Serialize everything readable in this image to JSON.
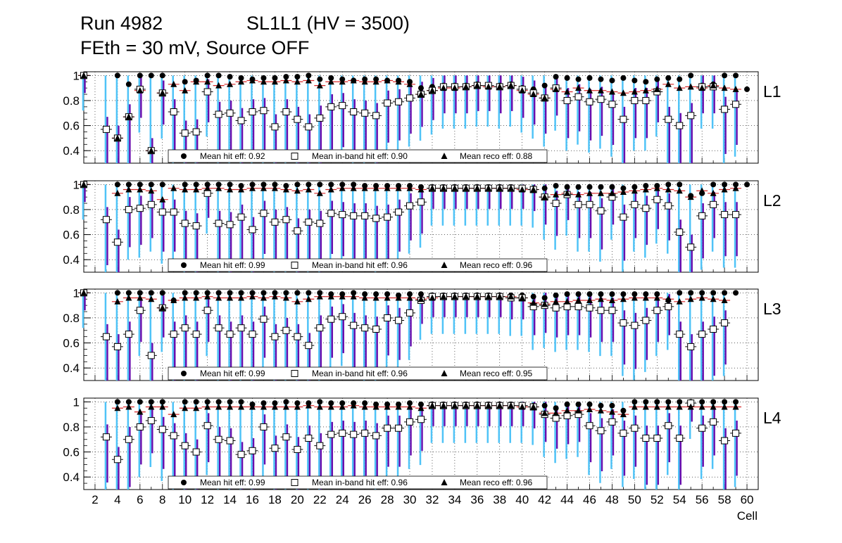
{
  "title": {
    "run": "Run 4982",
    "chamber": "SL1L1 (HV = 3500)",
    "conditions": "FEth = 30 mV, Source OFF"
  },
  "chart_data": {
    "type": "scatter",
    "xlabel": "Cell",
    "x_ticks": [
      "2",
      "4",
      "6",
      "8",
      "10",
      "12",
      "14",
      "16",
      "18",
      "20",
      "22",
      "24",
      "26",
      "28",
      "30",
      "32",
      "34",
      "36",
      "38",
      "40",
      "42",
      "44",
      "46",
      "48",
      "50",
      "52",
      "54",
      "56",
      "58",
      "60"
    ],
    "xlim": [
      1,
      61
    ],
    "ylim": [
      0.3,
      1.03
    ],
    "y_ticks": [
      "0.4",
      "0.6",
      "0.8",
      "1"
    ],
    "grid": true,
    "legend_labels": {
      "hit": "Mean hit  eff:",
      "inband": "Mean in-band hit eff:",
      "reco": "Mean reco eff:"
    },
    "colors": {
      "hit_marker": "#000000",
      "inband_marker": "#ffffff",
      "inband_error": "#4fc3f7",
      "reco_error": "#6a0dad",
      "reco_line": "#d62728"
    },
    "panels": [
      {
        "label": "L1",
        "mean_hit": "0.92",
        "mean_inband": "0.90",
        "mean_reco": "0.88",
        "series": [
          {
            "name": "hit",
            "values": [
              1.0,
              null,
              null,
              1.0,
              0.93,
              1.0,
              1.0,
              1.0,
              null,
              0.95,
              0.96,
              1.0,
              1.0,
              0.99,
              0.98,
              0.97,
              0.98,
              0.98,
              0.99,
              0.99,
              1.0,
              0.97,
              0.98,
              0.97,
              0.96,
              0.97,
              0.97,
              0.96,
              0.96,
              0.95,
              0.9,
              0.91,
              0.92,
              0.92,
              0.92,
              0.93,
              0.92,
              0.92,
              0.93,
              0.9,
              0.89,
              0.92,
              0.99,
              0.98,
              0.97,
              0.98,
              0.97,
              0.96,
              0.98,
              0.96,
              0.95,
              0.97,
              0.98,
              0.97,
              1.0,
              0.92,
              0.93,
              1.0,
              1.0,
              0.89
            ]
          },
          {
            "name": "inband",
            "values": [
              1.0,
              null,
              0.57,
              0.5,
              0.67,
              0.89,
              0.4,
              0.86,
              0.71,
              0.54,
              0.55,
              0.87,
              0.69,
              0.7,
              0.64,
              0.71,
              0.72,
              0.59,
              0.71,
              0.65,
              0.59,
              0.66,
              0.75,
              0.76,
              0.71,
              0.7,
              0.68,
              0.78,
              0.79,
              0.82,
              0.85,
              0.88,
              0.91,
              0.91,
              0.91,
              0.92,
              0.92,
              0.91,
              0.92,
              0.89,
              0.86,
              0.82,
              0.9,
              0.8,
              0.83,
              0.79,
              0.81,
              0.77,
              0.65,
              0.8,
              0.8,
              0.87,
              0.65,
              0.6,
              0.68,
              0.91,
              0.91,
              0.73,
              0.77,
              null
            ]
          },
          {
            "name": "reco",
            "values": [
              1.0,
              null,
              null,
              0.5,
              0.67,
              0.88,
              0.4,
              0.86,
              0.93,
              0.88,
              0.95,
              0.95,
              0.92,
              0.93,
              0.95,
              0.96,
              0.95,
              0.95,
              0.96,
              0.95,
              0.96,
              0.92,
              0.95,
              0.95,
              0.96,
              0.95,
              0.95,
              0.96,
              0.95,
              0.93,
              0.85,
              0.88,
              0.9,
              0.9,
              0.91,
              0.92,
              0.91,
              0.91,
              0.92,
              0.88,
              0.85,
              0.82,
              0.89,
              0.87,
              0.9,
              0.88,
              0.88,
              0.87,
              0.86,
              0.87,
              0.88,
              0.89,
              0.93,
              0.9,
              0.91,
              0.9,
              0.92,
              0.9,
              0.89,
              null
            ]
          }
        ]
      },
      {
        "label": "L2",
        "mean_hit": "0.99",
        "mean_inband": "0.96",
        "mean_reco": "0.96",
        "series": [
          {
            "name": "hit",
            "values": [
              1.0,
              null,
              null,
              1.0,
              1.0,
              1.0,
              1.0,
              1.0,
              null,
              1.0,
              1.0,
              1.0,
              1.0,
              1.0,
              0.99,
              1.0,
              1.0,
              1.0,
              0.99,
              1.0,
              1.0,
              1.0,
              1.0,
              1.0,
              1.0,
              0.99,
              0.99,
              0.99,
              0.99,
              0.99,
              0.98,
              0.98,
              0.98,
              0.98,
              0.98,
              0.98,
              0.98,
              0.98,
              0.98,
              0.97,
              0.97,
              0.97,
              0.99,
              0.98,
              0.98,
              0.98,
              0.98,
              0.98,
              0.97,
              0.98,
              0.99,
              0.99,
              1.0,
              1.0,
              0.91,
              0.93,
              1.0,
              1.0,
              1.0,
              1.0
            ]
          },
          {
            "name": "inband",
            "values": [
              1.0,
              null,
              0.72,
              0.54,
              0.8,
              0.81,
              0.84,
              0.78,
              0.78,
              0.69,
              0.67,
              0.93,
              0.69,
              0.68,
              0.74,
              0.64,
              0.77,
              0.7,
              0.72,
              0.63,
              0.7,
              0.69,
              0.77,
              0.76,
              0.75,
              0.75,
              0.73,
              0.74,
              0.78,
              0.83,
              0.86,
              0.97,
              0.97,
              0.97,
              0.97,
              0.97,
              0.97,
              0.97,
              0.97,
              0.97,
              0.96,
              0.9,
              0.85,
              0.92,
              0.84,
              0.84,
              0.79,
              0.9,
              0.74,
              0.84,
              0.81,
              0.88,
              0.83,
              0.62,
              0.5,
              0.75,
              0.84,
              0.76,
              0.76,
              null
            ]
          },
          {
            "name": "reco",
            "values": [
              1.0,
              null,
              null,
              0.93,
              0.96,
              0.96,
              0.95,
              0.88,
              0.97,
              0.96,
              0.96,
              0.97,
              0.97,
              0.96,
              0.96,
              0.97,
              0.97,
              0.97,
              0.96,
              0.95,
              0.96,
              0.93,
              0.96,
              0.97,
              0.97,
              0.97,
              0.97,
              0.97,
              0.97,
              0.97,
              0.96,
              0.97,
              0.97,
              0.97,
              0.97,
              0.97,
              0.97,
              0.97,
              0.97,
              0.96,
              0.96,
              0.9,
              0.92,
              0.93,
              0.92,
              0.93,
              0.93,
              0.93,
              0.94,
              0.95,
              0.96,
              0.97,
              0.96,
              0.95,
              0.9,
              0.95,
              0.93,
              0.96,
              0.97,
              null
            ]
          }
        ]
      },
      {
        "label": "L3",
        "mean_hit": "0.99",
        "mean_inband": "0.96",
        "mean_reco": "0.95",
        "series": [
          {
            "name": "hit",
            "values": [
              1.0,
              null,
              null,
              1.0,
              1.0,
              1.0,
              1.0,
              1.0,
              0.94,
              1.0,
              1.0,
              1.0,
              1.0,
              1.0,
              1.0,
              1.0,
              1.0,
              1.0,
              1.0,
              1.0,
              1.0,
              1.0,
              0.99,
              0.99,
              1.0,
              0.99,
              0.99,
              0.99,
              0.98,
              0.99,
              0.99,
              0.98,
              0.98,
              0.98,
              0.98,
              0.98,
              0.98,
              0.98,
              0.98,
              0.98,
              0.97,
              0.96,
              0.98,
              0.99,
              0.99,
              0.99,
              0.99,
              0.99,
              0.99,
              0.99,
              0.99,
              0.99,
              0.94,
              1.0,
              1.0,
              1.0,
              1.0,
              1.0,
              1.0,
              null
            ]
          },
          {
            "name": "inband",
            "values": [
              1.0,
              null,
              0.65,
              0.57,
              0.67,
              0.86,
              0.5,
              0.88,
              0.67,
              0.72,
              0.67,
              0.86,
              0.72,
              0.67,
              0.72,
              0.67,
              0.79,
              0.65,
              0.7,
              0.65,
              0.58,
              0.72,
              0.79,
              0.81,
              0.74,
              0.72,
              0.71,
              0.8,
              0.78,
              0.84,
              0.94,
              0.97,
              0.97,
              0.97,
              0.97,
              0.97,
              0.97,
              0.97,
              0.96,
              0.96,
              0.89,
              0.9,
              0.88,
              0.89,
              0.89,
              0.88,
              0.86,
              0.86,
              0.76,
              0.74,
              0.78,
              0.86,
              0.89,
              0.67,
              0.57,
              0.67,
              0.71,
              0.76,
              null,
              null
            ]
          },
          {
            "name": "reco",
            "values": [
              1.0,
              null,
              null,
              0.93,
              0.96,
              0.96,
              0.95,
              0.88,
              0.94,
              0.96,
              0.96,
              0.97,
              0.96,
              0.96,
              0.96,
              0.97,
              0.96,
              0.97,
              0.96,
              0.93,
              0.95,
              0.97,
              0.97,
              0.97,
              0.97,
              0.96,
              0.96,
              0.96,
              0.96,
              0.96,
              0.95,
              0.96,
              0.97,
              0.97,
              0.97,
              0.97,
              0.97,
              0.97,
              0.97,
              0.96,
              0.92,
              0.91,
              0.93,
              0.93,
              0.94,
              0.94,
              0.95,
              0.94,
              0.95,
              0.96,
              0.96,
              0.96,
              0.95,
              0.93,
              0.95,
              0.96,
              0.95,
              0.94,
              null,
              null
            ]
          }
        ]
      },
      {
        "label": "L4",
        "mean_hit": "0.99",
        "mean_inband": "0.96",
        "mean_reco": "0.96",
        "series": [
          {
            "name": "hit",
            "values": [
              null,
              null,
              null,
              1.0,
              1.0,
              1.0,
              1.0,
              1.0,
              null,
              1.0,
              1.0,
              1.0,
              1.0,
              1.0,
              1.0,
              0.98,
              0.99,
              0.99,
              1.0,
              0.99,
              0.99,
              1.0,
              0.99,
              0.99,
              0.99,
              0.99,
              0.98,
              0.98,
              0.98,
              0.99,
              0.98,
              0.98,
              0.98,
              0.98,
              0.98,
              0.98,
              0.98,
              0.98,
              0.98,
              0.97,
              0.97,
              0.97,
              0.95,
              0.98,
              0.98,
              0.98,
              0.97,
              0.97,
              0.93,
              1.0,
              1.0,
              1.0,
              1.0,
              1.0,
              1.0,
              1.0,
              1.0,
              1.0,
              1.0,
              null
            ]
          },
          {
            "name": "inband",
            "values": [
              null,
              null,
              0.72,
              0.54,
              0.7,
              0.8,
              0.85,
              0.78,
              0.73,
              0.65,
              0.6,
              0.81,
              0.7,
              0.69,
              0.58,
              0.61,
              0.8,
              0.63,
              0.72,
              0.62,
              0.71,
              0.65,
              0.74,
              0.75,
              0.74,
              0.75,
              0.73,
              0.79,
              0.79,
              0.84,
              0.86,
              0.97,
              0.97,
              0.97,
              0.97,
              0.97,
              0.97,
              0.97,
              0.97,
              0.97,
              0.96,
              0.9,
              0.87,
              0.89,
              0.9,
              0.81,
              0.77,
              0.84,
              0.75,
              0.79,
              0.71,
              0.71,
              0.81,
              0.71,
              0.99,
              0.79,
              0.84,
              0.69,
              0.75,
              null
            ]
          },
          {
            "name": "reco",
            "values": [
              null,
              null,
              null,
              0.95,
              0.96,
              0.92,
              0.96,
              0.96,
              0.9,
              0.95,
              0.95,
              0.96,
              0.96,
              0.96,
              0.96,
              0.96,
              0.96,
              0.96,
              0.96,
              0.96,
              0.97,
              0.96,
              0.96,
              0.96,
              0.97,
              0.96,
              0.96,
              0.96,
              0.96,
              0.96,
              0.95,
              0.97,
              0.97,
              0.97,
              0.97,
              0.97,
              0.97,
              0.97,
              0.97,
              0.96,
              0.96,
              0.91,
              0.91,
              0.93,
              0.93,
              0.94,
              0.93,
              0.92,
              0.9,
              0.96,
              0.96,
              0.96,
              0.96,
              0.96,
              0.96,
              0.96,
              0.96,
              0.96,
              0.96,
              null
            ]
          }
        ]
      }
    ]
  }
}
